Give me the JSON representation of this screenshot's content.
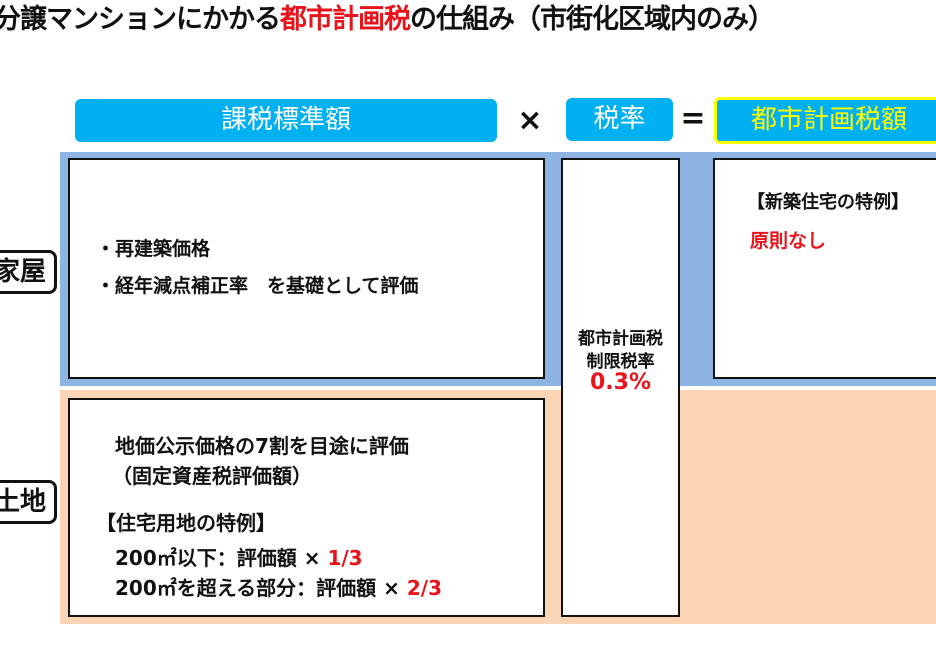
{
  "title": {
    "before": "分譲マンションにかかる",
    "highlight": "都市計画税",
    "after": "の仕組み（市街化区域内のみ）"
  },
  "formula": {
    "base_label": "課税標準額",
    "times": "×",
    "rate_label": "税率",
    "equals": "=",
    "result_label": "都市計画税額"
  },
  "rows": {
    "house": {
      "label": "家屋",
      "lines": [
        "・再建築価格",
        "・経年減点補正率　を基礎として評価"
      ],
      "special_title": "【新築住宅の特例】",
      "special_value": "原則なし"
    },
    "land": {
      "label": "土地",
      "line1": "地価公示価格の7割を目途に評価",
      "line2": "（固定資産税評価額）",
      "special_title": "【住宅用地の特例】",
      "rule1_text": "200㎡以下：評価額 × ",
      "rule1_value": "1/3",
      "rule2_text": "200㎡を超える部分：評価額 × ",
      "rule2_value": "2/3"
    }
  },
  "rate": {
    "line1": "都市計画税",
    "line2": "制限税率",
    "value": "0.3%"
  },
  "colors": {
    "pill": "#00b0f0",
    "result_border": "#ffff00",
    "house_band": "#8eb4e3",
    "land_band": "#fbd5b5",
    "accent_red": "#e8141b"
  }
}
